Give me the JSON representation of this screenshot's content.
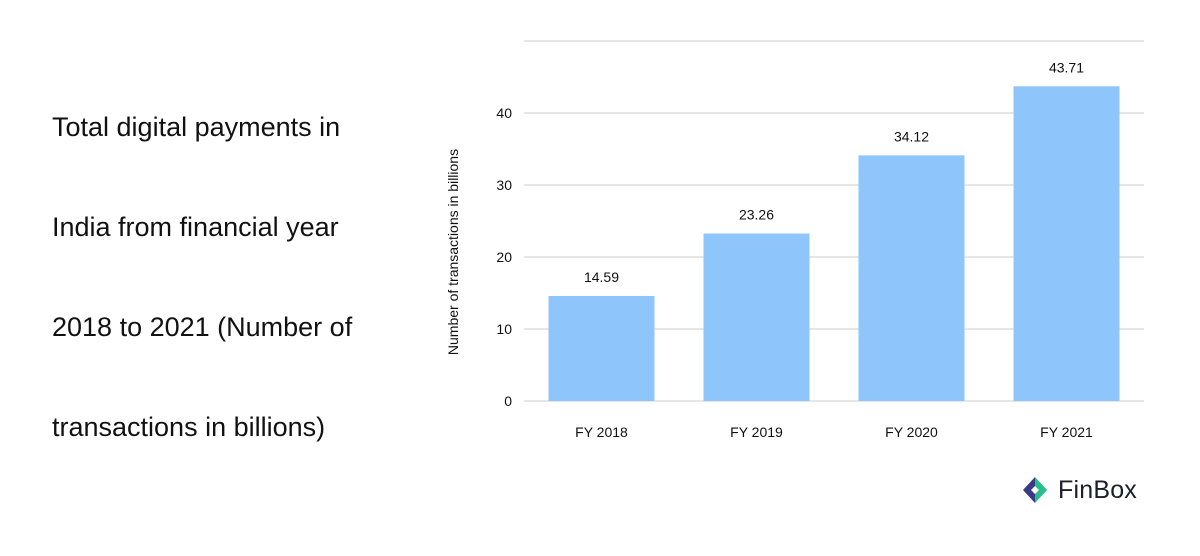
{
  "title": "Total digital payments in India from financial year 2018 to 2021 (Number of transactions in billions)",
  "title_lines": [
    "Total digital payments in",
    "India from financial year",
    "2018 to 2021 (Number of",
    "transactions in billions)"
  ],
  "chart_data": {
    "type": "bar",
    "categories": [
      "FY 2018",
      "FY 2019",
      "FY 2020",
      "FY 2021"
    ],
    "values": [
      14.59,
      23.26,
      34.12,
      43.71
    ],
    "data_labels": [
      "14.59",
      "23.26",
      "34.12",
      "43.71"
    ],
    "title": "Total digital payments in India from financial year 2018 to 2021 (Number of transactions in billions)",
    "xlabel": "",
    "ylabel": "Number of transactions in billions",
    "ylim": [
      0,
      50
    ],
    "yticks": [
      0,
      10,
      20,
      30,
      40
    ],
    "grid": true,
    "legend": "none",
    "bar_color": "#8ec6fc",
    "grid_color": "#cccccc"
  },
  "brand": {
    "name": "FinBox",
    "logo_color_dark": "#3a3a86",
    "logo_color_green": "#23c08a"
  }
}
